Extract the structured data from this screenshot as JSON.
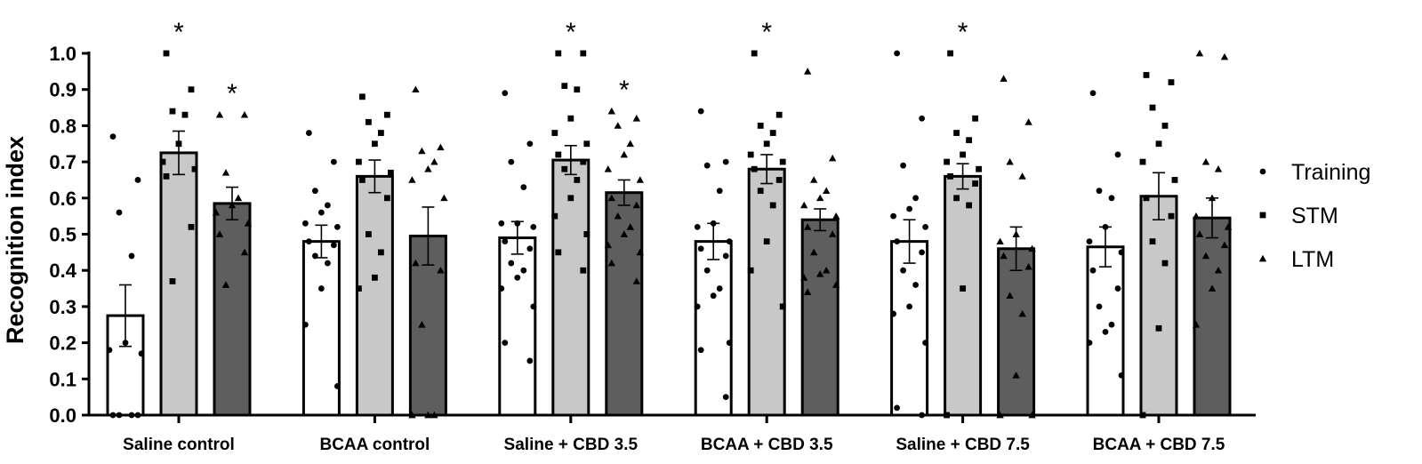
{
  "chart_data": {
    "type": "bar",
    "ylabel": "Recognition index",
    "ylim": [
      0,
      1.0
    ],
    "yticks": [
      "0.0",
      "0.1",
      "0.2",
      "0.3",
      "0.4",
      "0.5",
      "0.6",
      "0.7",
      "0.8",
      "0.9",
      "1.0"
    ],
    "categories": [
      "Saline control",
      "BCAA control",
      "Saline + CBD 3.5",
      "BCAA + CBD 3.5",
      "Saline + CBD 7.5",
      "BCAA + CBD 7.5"
    ],
    "legend_position": "right",
    "series": [
      {
        "name": "Training",
        "marker": "circle",
        "fill": "#ffffff",
        "values": [
          0.275,
          0.48,
          0.49,
          0.48,
          0.48,
          0.465
        ],
        "sem": [
          0.085,
          0.045,
          0.045,
          0.05,
          0.06,
          0.055
        ],
        "significant": [
          false,
          false,
          false,
          false,
          false,
          false
        ],
        "points": [
          [
            0.77,
            0.65,
            0.56,
            0.44,
            0.2,
            0.18,
            0.17,
            0.0,
            0.0,
            0.0,
            0.0
          ],
          [
            0.78,
            0.7,
            0.62,
            0.58,
            0.56,
            0.53,
            0.52,
            0.48,
            0.47,
            0.44,
            0.42,
            0.35,
            0.25,
            0.08
          ],
          [
            0.89,
            0.75,
            0.7,
            0.63,
            0.53,
            0.53,
            0.52,
            0.48,
            0.46,
            0.42,
            0.4,
            0.38,
            0.35,
            0.3,
            0.2,
            0.15
          ],
          [
            0.84,
            0.7,
            0.69,
            0.62,
            0.53,
            0.52,
            0.48,
            0.46,
            0.44,
            0.4,
            0.35,
            0.33,
            0.3,
            0.2,
            0.18,
            0.05
          ],
          [
            1.0,
            0.82,
            0.69,
            0.6,
            0.57,
            0.55,
            0.52,
            0.48,
            0.45,
            0.4,
            0.36,
            0.3,
            0.28,
            0.2,
            0.02,
            0.0
          ],
          [
            0.89,
            0.72,
            0.62,
            0.6,
            0.52,
            0.48,
            0.45,
            0.4,
            0.35,
            0.3,
            0.25,
            0.23,
            0.2,
            0.11
          ]
        ]
      },
      {
        "name": "STM",
        "marker": "square",
        "fill": "#c8c8c8",
        "values": [
          0.725,
          0.66,
          0.705,
          0.68,
          0.66,
          0.605
        ],
        "sem": [
          0.06,
          0.045,
          0.04,
          0.04,
          0.035,
          0.065
        ],
        "significant": [
          true,
          false,
          true,
          true,
          true,
          false
        ],
        "points": [
          [
            1.0,
            0.9,
            0.84,
            0.83,
            0.75,
            0.7,
            0.68,
            0.66,
            0.52,
            0.37
          ],
          [
            0.88,
            0.83,
            0.81,
            0.78,
            0.75,
            0.7,
            0.67,
            0.65,
            0.6,
            0.5,
            0.45,
            0.38,
            0.35
          ],
          [
            1.0,
            1.0,
            0.91,
            0.9,
            0.82,
            0.78,
            0.75,
            0.72,
            0.7,
            0.68,
            0.65,
            0.6,
            0.55,
            0.5,
            0.45,
            0.4
          ],
          [
            1.0,
            0.83,
            0.8,
            0.78,
            0.75,
            0.72,
            0.7,
            0.68,
            0.65,
            0.62,
            0.58,
            0.48,
            0.4,
            0.3
          ],
          [
            1.0,
            0.82,
            0.78,
            0.76,
            0.72,
            0.7,
            0.68,
            0.66,
            0.64,
            0.6,
            0.58,
            0.35,
            0.0
          ],
          [
            0.94,
            0.92,
            0.85,
            0.8,
            0.75,
            0.7,
            0.65,
            0.6,
            0.55,
            0.48,
            0.42,
            0.24,
            0.0
          ]
        ]
      },
      {
        "name": "LTM",
        "marker": "triangle",
        "fill": "#5e5e5e",
        "values": [
          0.585,
          0.495,
          0.615,
          0.54,
          0.46,
          0.545
        ],
        "sem": [
          0.045,
          0.08,
          0.035,
          0.03,
          0.06,
          0.055
        ],
        "significant": [
          true,
          false,
          true,
          false,
          false,
          false
        ],
        "points": [
          [
            0.83,
            0.83,
            0.67,
            0.6,
            0.58,
            0.56,
            0.53,
            0.5,
            0.45,
            0.36
          ],
          [
            0.9,
            0.74,
            0.73,
            0.7,
            0.68,
            0.65,
            0.6,
            0.42,
            0.4,
            0.25,
            0.0,
            0.0,
            0.0
          ],
          [
            0.84,
            0.82,
            0.8,
            0.75,
            0.72,
            0.68,
            0.65,
            0.6,
            0.58,
            0.55,
            0.52,
            0.5,
            0.47,
            0.45,
            0.42,
            0.37
          ],
          [
            0.95,
            0.71,
            0.65,
            0.62,
            0.6,
            0.58,
            0.55,
            0.52,
            0.5,
            0.45,
            0.4,
            0.39,
            0.38,
            0.36,
            0.34
          ],
          [
            0.93,
            0.81,
            0.7,
            0.66,
            0.5,
            0.48,
            0.46,
            0.44,
            0.41,
            0.33,
            0.28,
            0.11,
            0.0,
            0.0
          ],
          [
            1.0,
            0.99,
            0.7,
            0.68,
            0.6,
            0.55,
            0.52,
            0.5,
            0.47,
            0.44,
            0.4,
            0.35,
            0.25
          ]
        ]
      }
    ],
    "significance_symbol": "*"
  }
}
